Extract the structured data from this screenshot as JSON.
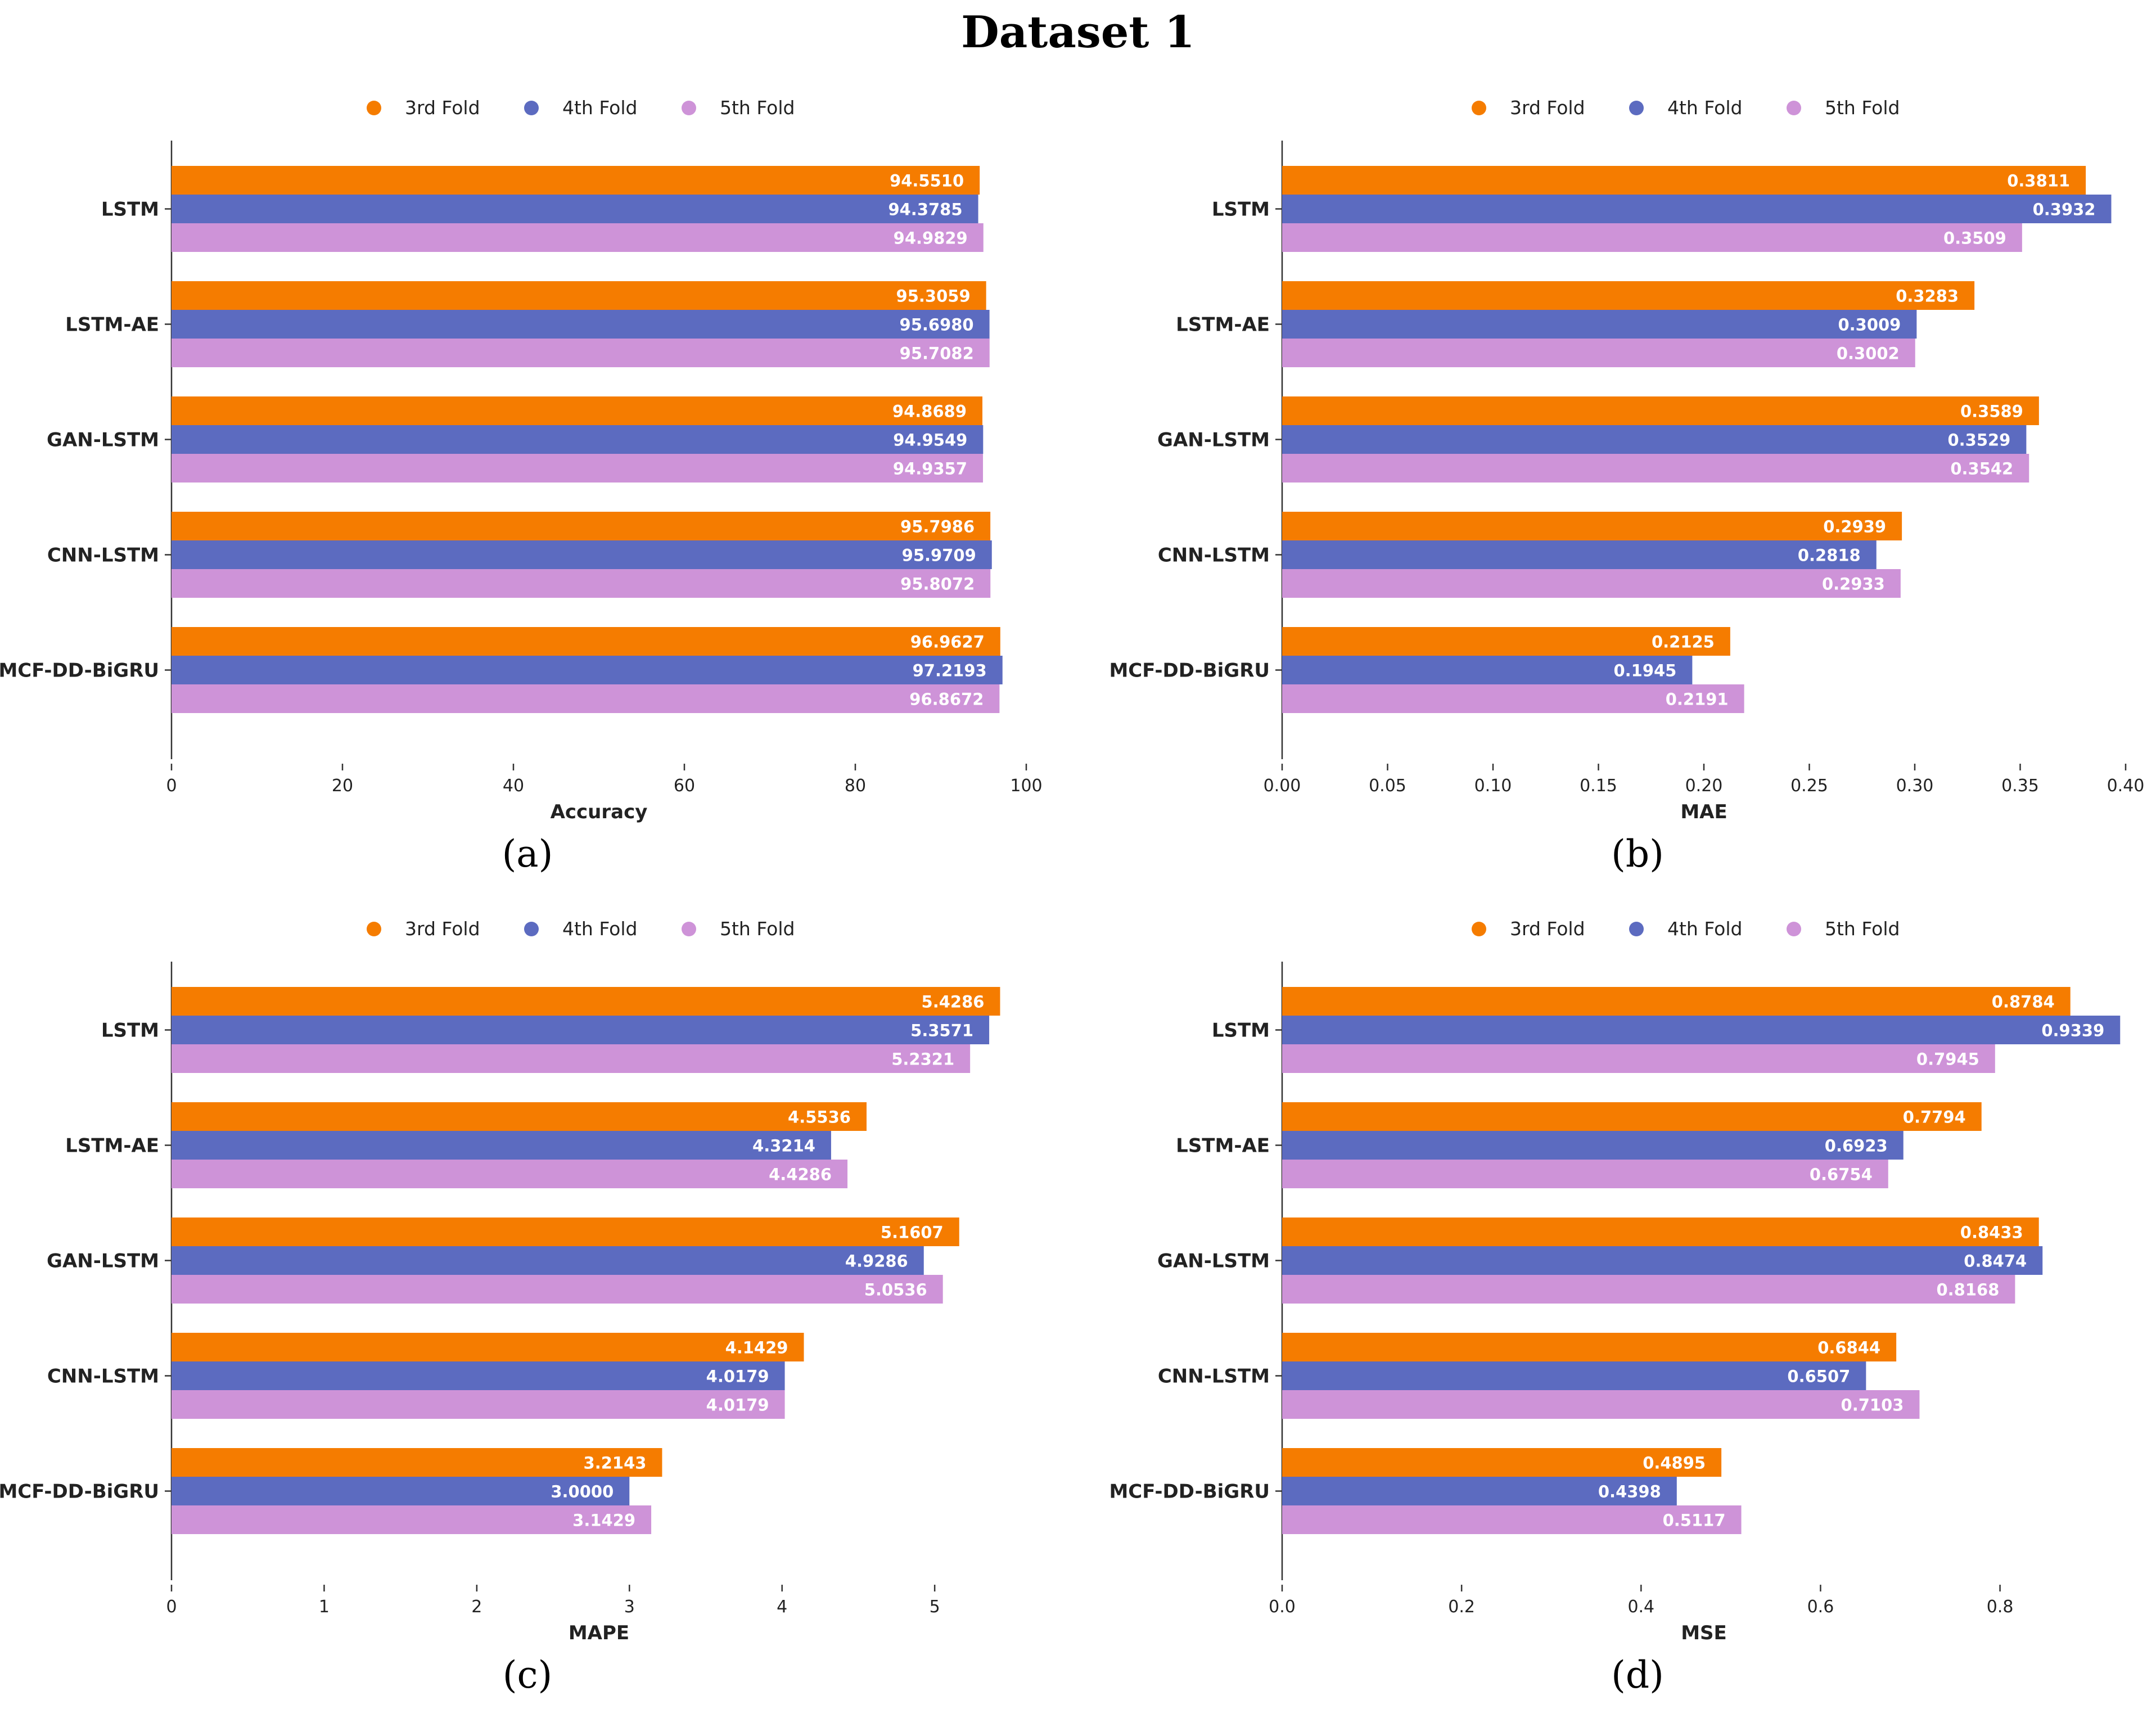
{
  "title": "Dataset 1",
  "colors": {
    "fold3": "#f57c00",
    "fold4": "#5c6bc0",
    "fold5": "#ce93d8"
  },
  "charts": [
    {
      "chart_data": {
        "type": "bar",
        "orientation": "horizontal",
        "categories": [
          "LSTM",
          "LSTM-AE",
          "GAN-LSTM",
          "CNN-LSTM",
          "MCF-DD-BiGRU"
        ],
        "series": [
          {
            "name": "3rd Fold",
            "values": [
              94.551,
              95.3059,
              94.8689,
              95.7986,
              96.9627
            ],
            "labels": [
              "94.5510",
              "95.3059",
              "94.8689",
              "95.7986",
              "96.9627"
            ]
          },
          {
            "name": "4th Fold",
            "values": [
              94.3785,
              95.698,
              94.9549,
              95.9709,
              97.2193
            ],
            "labels": [
              "94.3785",
              "95.6980",
              "94.9549",
              "95.9709",
              "97.2193"
            ]
          },
          {
            "name": "5th Fold",
            "values": [
              94.9829,
              95.7082,
              94.9357,
              95.8072,
              96.8672
            ],
            "labels": [
              "94.9829",
              "95.7082",
              "94.9357",
              "95.8072",
              "96.8672"
            ]
          }
        ],
        "xlabel": "Accuracy",
        "xlim": [
          0,
          100
        ],
        "ticks": [
          0,
          20,
          40,
          60,
          80,
          100
        ],
        "tick_labels": [
          "0",
          "20",
          "40",
          "60",
          "80",
          "100"
        ],
        "legend_position": "top-center"
      },
      "caption": "(a)"
    },
    {
      "chart_data": {
        "type": "bar",
        "orientation": "horizontal",
        "categories": [
          "LSTM",
          "LSTM-AE",
          "GAN-LSTM",
          "CNN-LSTM",
          "MCF-DD-BiGRU"
        ],
        "series": [
          {
            "name": "3rd Fold",
            "values": [
              0.3811,
              0.3283,
              0.3589,
              0.2939,
              0.2125
            ],
            "labels": [
              "0.3811",
              "0.3283",
              "0.3589",
              "0.2939",
              "0.2125"
            ]
          },
          {
            "name": "4th Fold",
            "values": [
              0.3932,
              0.3009,
              0.3529,
              0.2818,
              0.1945
            ],
            "labels": [
              "0.3932",
              "0.3009",
              "0.3529",
              "0.2818",
              "0.1945"
            ]
          },
          {
            "name": "5th Fold",
            "values": [
              0.3509,
              0.3002,
              0.3542,
              0.2933,
              0.2191
            ],
            "labels": [
              "0.3509",
              "0.3002",
              "0.3542",
              "0.2933",
              "0.2191"
            ]
          }
        ],
        "xlabel": "MAE",
        "xlim": [
          0,
          0.4
        ],
        "ticks": [
          0,
          0.05,
          0.1,
          0.15,
          0.2,
          0.25,
          0.3,
          0.35,
          0.4
        ],
        "tick_labels": [
          "0.00",
          "0.05",
          "0.10",
          "0.15",
          "0.20",
          "0.25",
          "0.30",
          "0.35",
          "0.40"
        ],
        "legend_position": "top-center"
      },
      "caption": "(b)"
    },
    {
      "chart_data": {
        "type": "bar",
        "orientation": "horizontal",
        "categories": [
          "LSTM",
          "LSTM-AE",
          "GAN-LSTM",
          "CNN-LSTM",
          "MCF-DD-BiGRU"
        ],
        "series": [
          {
            "name": "3rd Fold",
            "values": [
              5.4286,
              4.5536,
              5.1607,
              4.1429,
              3.2143
            ],
            "labels": [
              "5.4286",
              "4.5536",
              "5.1607",
              "4.1429",
              "3.2143"
            ]
          },
          {
            "name": "4th Fold",
            "values": [
              5.3571,
              4.3214,
              4.9286,
              4.0179,
              3.0
            ],
            "labels": [
              "5.3571",
              "4.3214",
              "4.9286",
              "4.0179",
              "3.0000"
            ]
          },
          {
            "name": "5th Fold",
            "values": [
              5.2321,
              4.4286,
              5.0536,
              4.0179,
              3.1429
            ],
            "labels": [
              "5.2321",
              "4.4286",
              "5.0536",
              "4.0179",
              "3.1429"
            ]
          }
        ],
        "xlabel": "MAPE",
        "xlim": [
          0,
          5.6
        ],
        "ticks": [
          0,
          1,
          2,
          3,
          4,
          5
        ],
        "tick_labels": [
          "0",
          "1",
          "2",
          "3",
          "4",
          "5"
        ],
        "legend_position": "top-center"
      },
      "caption": "(c)"
    },
    {
      "chart_data": {
        "type": "bar",
        "orientation": "horizontal",
        "categories": [
          "LSTM",
          "LSTM-AE",
          "GAN-LSTM",
          "CNN-LSTM",
          "MCF-DD-BiGRU"
        ],
        "series": [
          {
            "name": "3rd Fold",
            "values": [
              0.8784,
              0.7794,
              0.8433,
              0.6844,
              0.4895
            ],
            "labels": [
              "0.8784",
              "0.7794",
              "0.8433",
              "0.6844",
              "0.4895"
            ]
          },
          {
            "name": "4th Fold",
            "values": [
              0.9339,
              0.6923,
              0.8474,
              0.6507,
              0.4398
            ],
            "labels": [
              "0.9339",
              "0.6923",
              "0.8474",
              "0.6507",
              "0.4398"
            ]
          },
          {
            "name": "5th Fold",
            "values": [
              0.7945,
              0.6754,
              0.8168,
              0.7103,
              0.5117
            ],
            "labels": [
              "0.7945",
              "0.6754",
              "0.8168",
              "0.7103",
              "0.5117"
            ]
          }
        ],
        "xlabel": "MSE",
        "xlim": [
          0,
          0.94
        ],
        "ticks": [
          0,
          0.2,
          0.4,
          0.6,
          0.8
        ],
        "tick_labels": [
          "0.0",
          "0.2",
          "0.4",
          "0.6",
          "0.8"
        ],
        "legend_position": "top-center"
      },
      "caption": "(d)"
    }
  ]
}
